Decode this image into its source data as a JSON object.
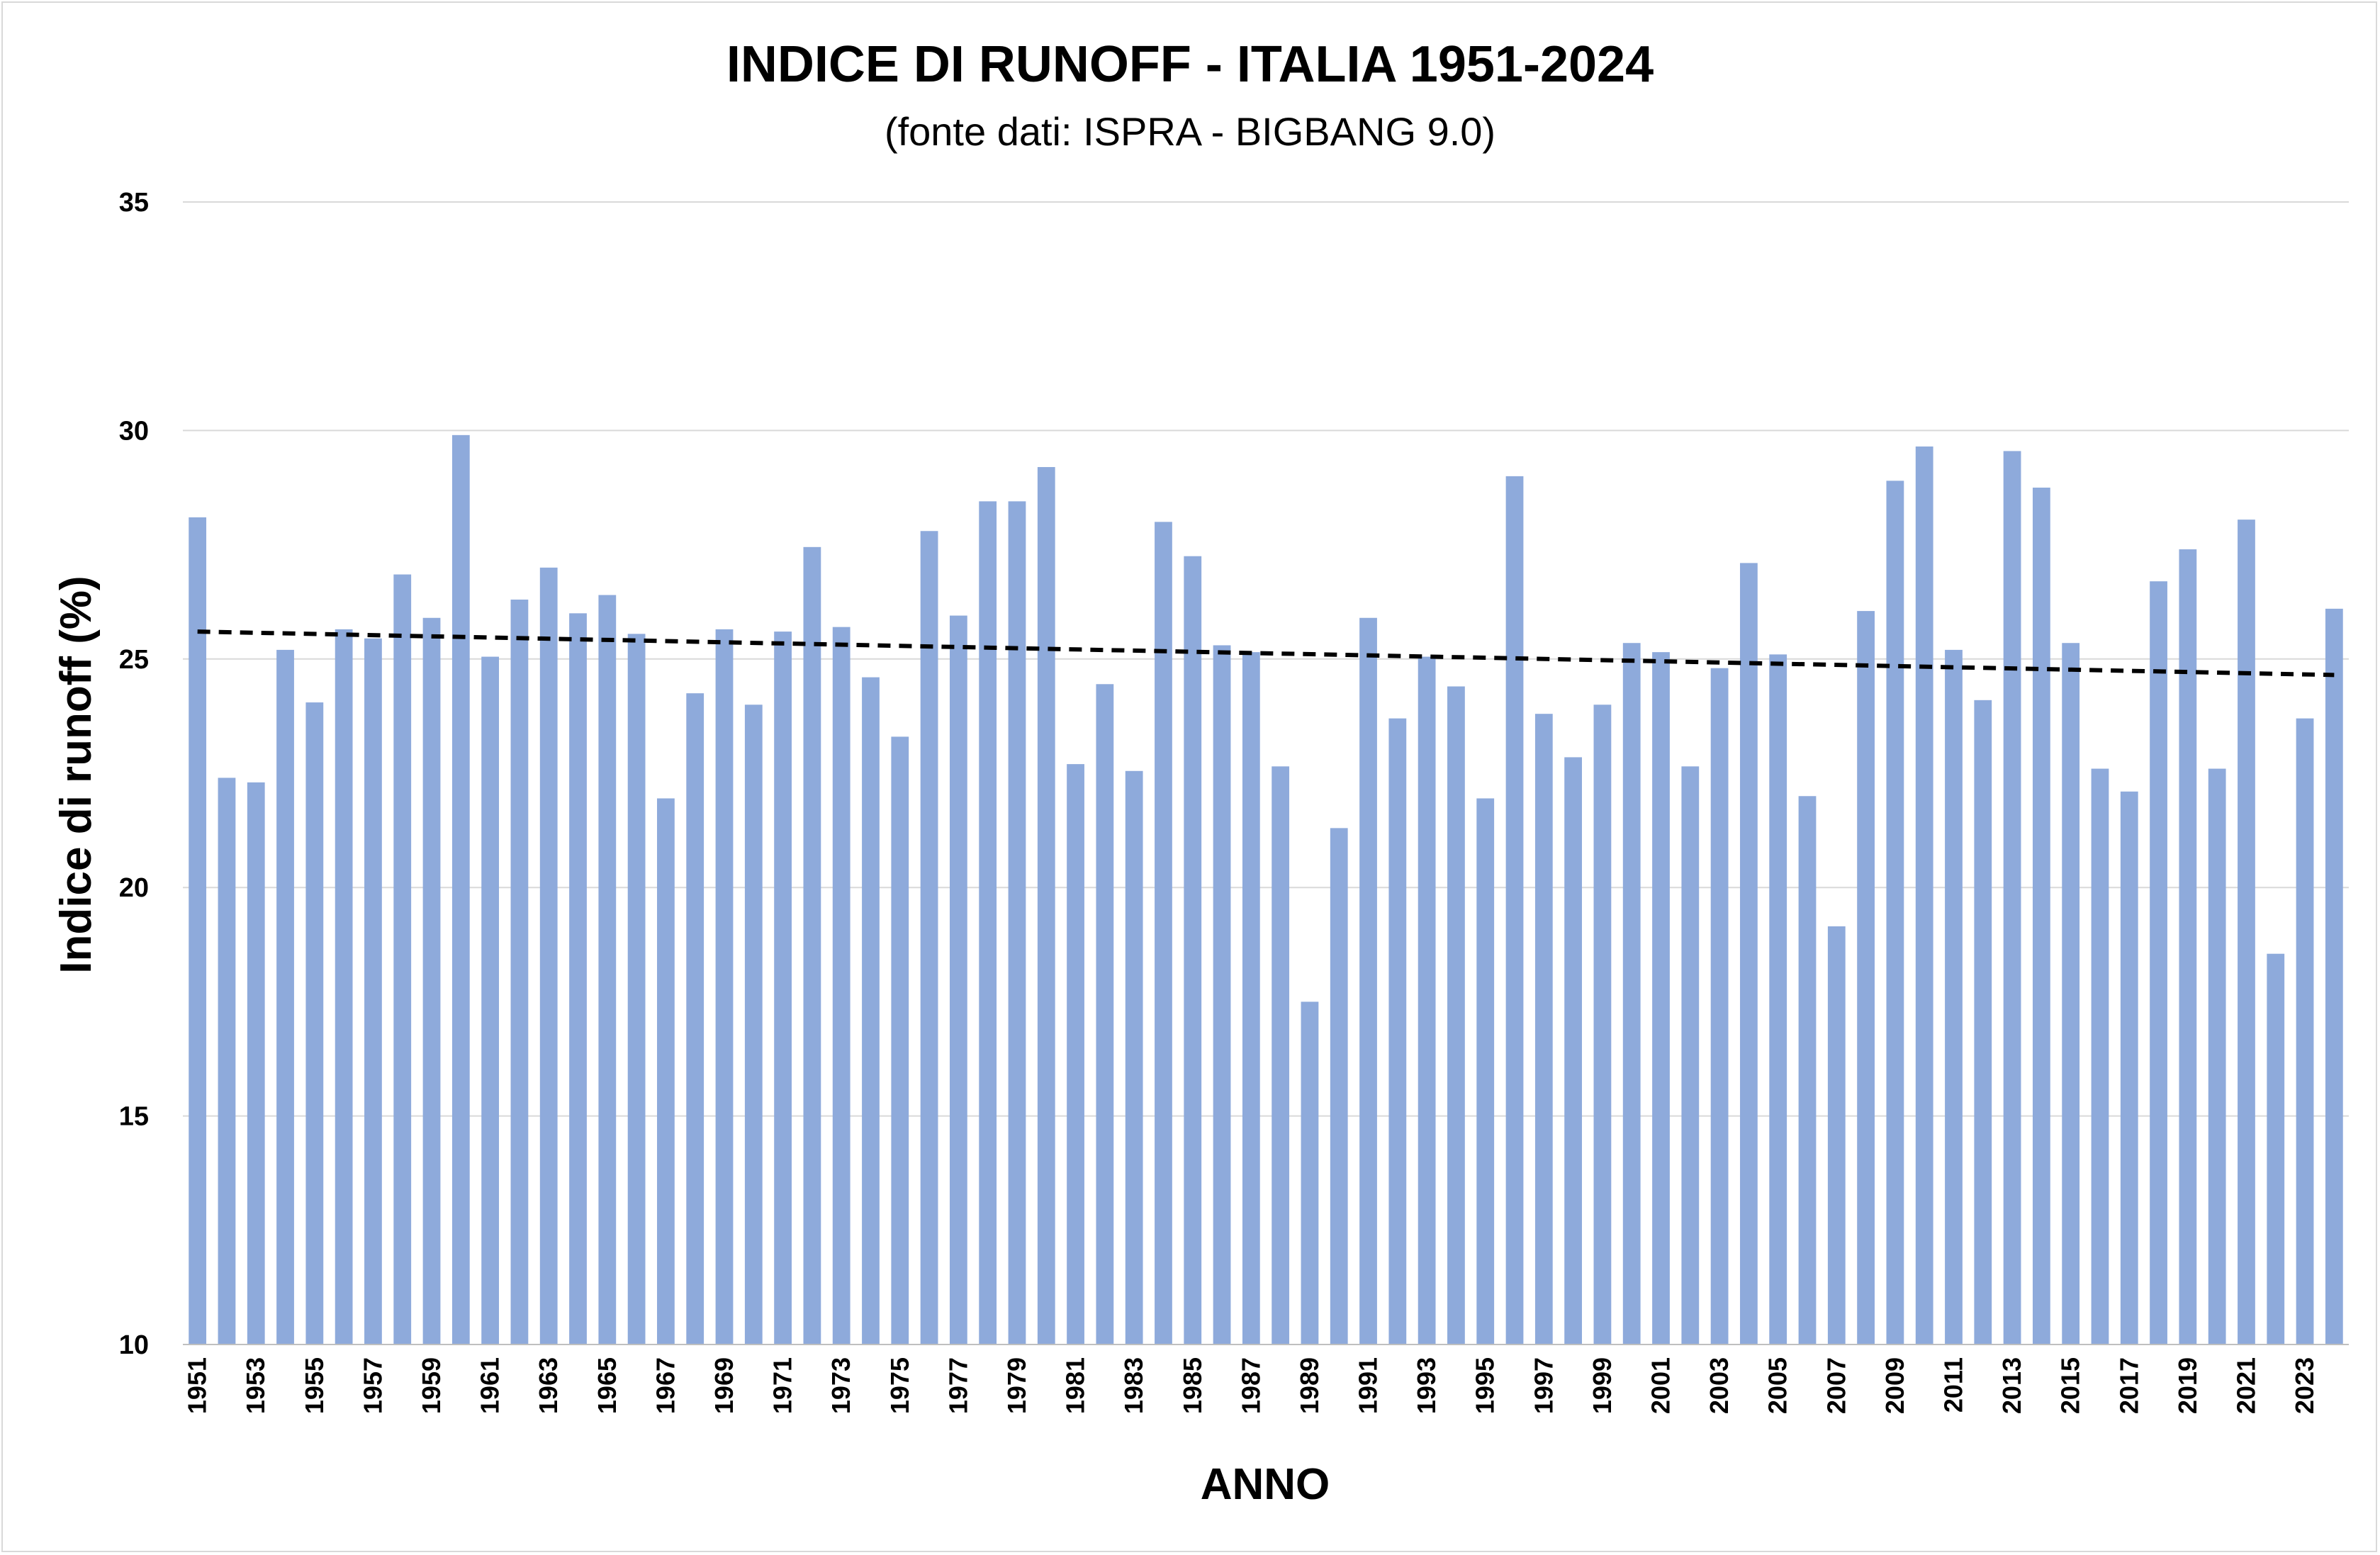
{
  "chart_data": {
    "type": "bar",
    "title": "INDICE DI RUNOFF - ITALIA 1951-2024",
    "subtitle": "(fonte dati: ISPRA - BIGBANG 9.0)",
    "xlabel": "ANNO",
    "ylabel": "Indice di runoff (%)",
    "ylim": [
      10,
      35
    ],
    "yticks": [
      10,
      15,
      20,
      25,
      30,
      35
    ],
    "grid": true,
    "bar_color": "#8eaadb",
    "trend_color": "#000000",
    "categories": [
      "1951",
      "1952",
      "1953",
      "1954",
      "1955",
      "1956",
      "1957",
      "1958",
      "1959",
      "1960",
      "1961",
      "1962",
      "1963",
      "1964",
      "1965",
      "1966",
      "1967",
      "1968",
      "1969",
      "1970",
      "1971",
      "1972",
      "1973",
      "1974",
      "1975",
      "1976",
      "1977",
      "1978",
      "1979",
      "1980",
      "1981",
      "1982",
      "1983",
      "1984",
      "1985",
      "1986",
      "1987",
      "1988",
      "1989",
      "1990",
      "1991",
      "1992",
      "1993",
      "1994",
      "1995",
      "1996",
      "1997",
      "1998",
      "1999",
      "2000",
      "2001",
      "2002",
      "2003",
      "2004",
      "2005",
      "2006",
      "2007",
      "2008",
      "2009",
      "2010",
      "2011",
      "2012",
      "2013",
      "2014",
      "2015",
      "2016",
      "2017",
      "2018",
      "2019",
      "2020",
      "2021",
      "2022",
      "2023",
      "2024"
    ],
    "x_tick_labels": [
      "1951",
      "1953",
      "1955",
      "1957",
      "1959",
      "1961",
      "1963",
      "1965",
      "1967",
      "1969",
      "1971",
      "1973",
      "1975",
      "1977",
      "1979",
      "1981",
      "1983",
      "1985",
      "1987",
      "1989",
      "1991",
      "1993",
      "1995",
      "1997",
      "1999",
      "2001",
      "2003",
      "2005",
      "2007",
      "2009",
      "2011",
      "2013",
      "2015",
      "2017",
      "2019",
      "2021",
      "2023"
    ],
    "values": [
      28.1,
      22.4,
      22.3,
      25.2,
      24.05,
      25.65,
      25.45,
      26.85,
      25.9,
      29.9,
      25.05,
      26.3,
      27.0,
      26.0,
      26.4,
      25.55,
      21.95,
      24.25,
      25.65,
      24.0,
      25.6,
      27.45,
      25.7,
      24.6,
      23.3,
      27.8,
      25.95,
      28.45,
      28.45,
      29.2,
      22.7,
      24.45,
      22.55,
      28.0,
      27.25,
      25.3,
      25.15,
      22.65,
      17.5,
      21.3,
      25.9,
      23.7,
      25.05,
      24.4,
      21.95,
      29.0,
      23.8,
      22.85,
      24.0,
      25.35,
      25.15,
      22.65,
      24.8,
      27.1,
      25.1,
      22.0,
      19.15,
      26.05,
      28.9,
      29.65,
      25.2,
      24.1,
      29.55,
      28.75,
      25.35,
      22.6,
      22.1,
      26.7,
      27.4,
      22.6,
      28.05,
      18.55,
      23.7,
      26.1
    ],
    "trend": {
      "type": "linear",
      "start": [
        1951,
        25.6
      ],
      "end": [
        2024,
        24.65
      ]
    }
  }
}
